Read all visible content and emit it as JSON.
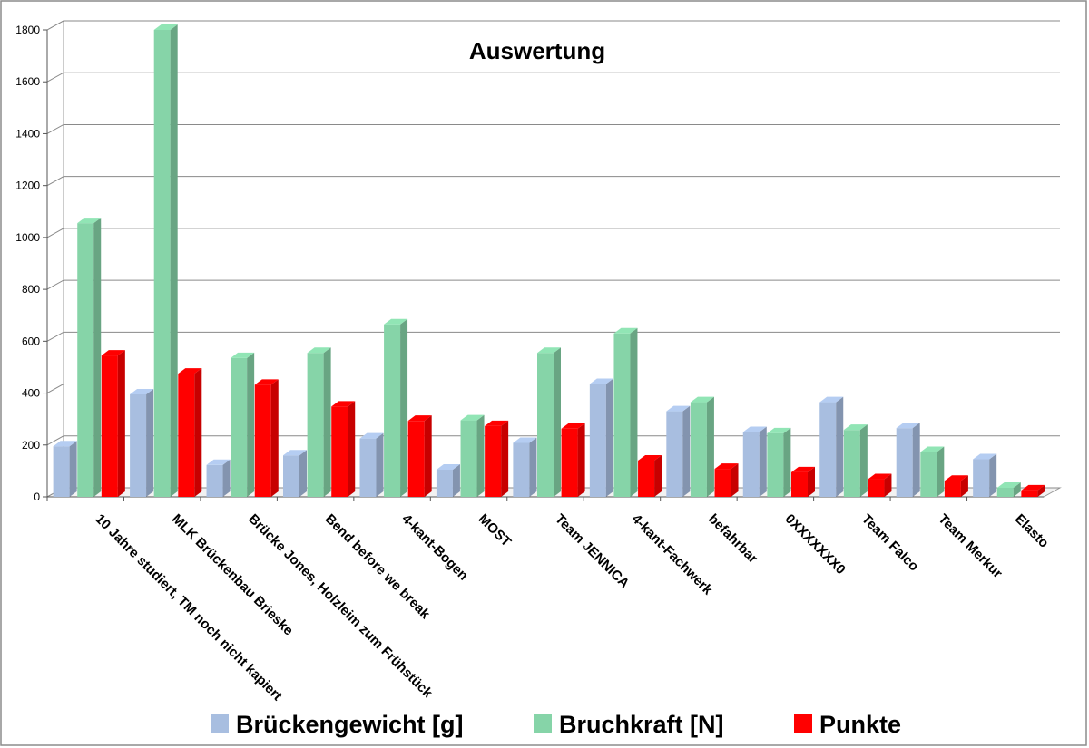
{
  "chart_data": {
    "type": "bar",
    "title": "Auswertung",
    "categories": [
      "10 Jahre studiert, TM noch nicht kapiert",
      "MLK Brückenbau Brieske",
      "Brücke Jones, Holzleim zum Frühstück",
      "Bend before we break",
      "4-kant-Bogen",
      "MOST",
      "Team JENNICA",
      "4-kant-Fachwerk",
      "befahrbar",
      "0XXXXXXX0",
      "Team Falco",
      "Team Merkur",
      "Elasto"
    ],
    "series": [
      {
        "name": "Brückengewicht [g]",
        "color": "#a8bee0",
        "values": [
          195,
          395,
          123,
          160,
          225,
          105,
          208,
          435,
          330,
          250,
          365,
          265,
          145
        ]
      },
      {
        "name": "Bruchkraft [N]",
        "color": "#86d4a8",
        "values": [
          1055,
          1800,
          535,
          555,
          665,
          295,
          555,
          630,
          365,
          245,
          258,
          173,
          35
        ]
      },
      {
        "name": "Punkte",
        "color": "#ff0000",
        "values": [
          545,
          475,
          432,
          348,
          293,
          273,
          263,
          140,
          108,
          95,
          68,
          62,
          25
        ]
      }
    ],
    "yticks": [
      0,
      200,
      400,
      600,
      800,
      1000,
      1200,
      1400,
      1600,
      1800
    ],
    "ylim": [
      0,
      1800
    ],
    "xlabel": "",
    "ylabel": "",
    "grid": true,
    "legend_position": "bottom",
    "bar_style": "3d"
  }
}
